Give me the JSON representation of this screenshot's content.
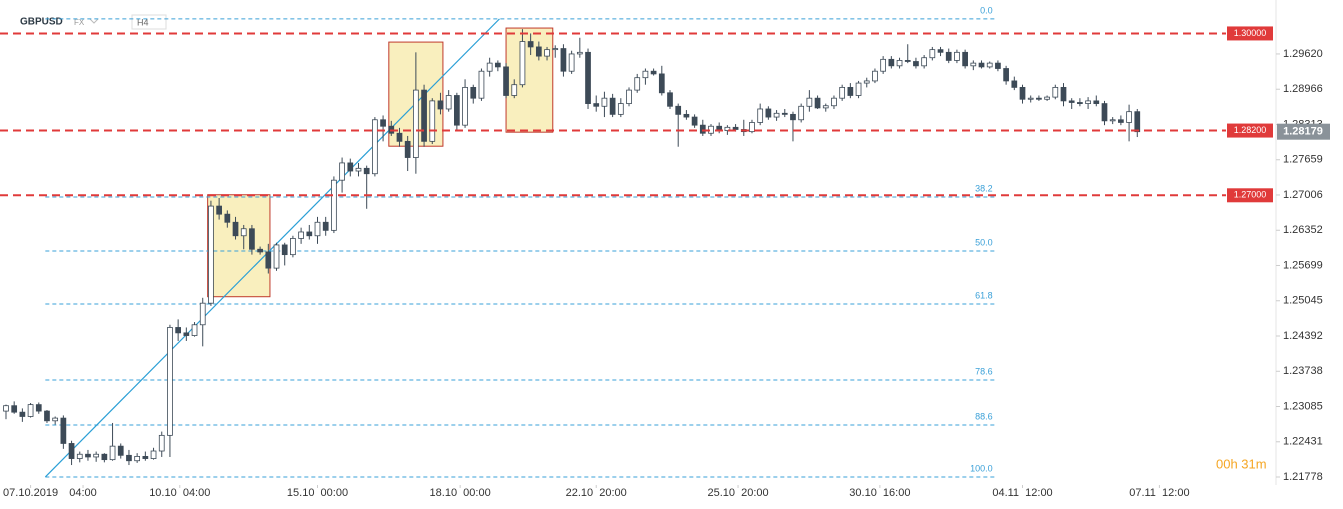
{
  "chart_data": {
    "type": "candlestick",
    "symbol": "GBPUSD",
    "market": "FX",
    "timeframe": "H4",
    "timer": "00h 31m",
    "ylim": [
      1.2163,
      1.3062
    ],
    "xlim": [
      -0.73,
      154.8
    ],
    "yticks": [
      {
        "value": 1.2962,
        "label": "1.29620"
      },
      {
        "value": 1.28966,
        "label": "1.28966"
      },
      {
        "value": 1.28313,
        "label": "1.28313"
      },
      {
        "value": 1.27659,
        "label": "1.27659"
      },
      {
        "value": 1.27006,
        "label": "1.27006"
      },
      {
        "value": 1.26352,
        "label": "1.26352"
      },
      {
        "value": 1.25699,
        "label": "1.25699"
      },
      {
        "value": 1.25045,
        "label": "1.25045"
      },
      {
        "value": 1.24392,
        "label": "1.24392"
      },
      {
        "value": 1.23738,
        "label": "1.23738"
      },
      {
        "value": 1.23085,
        "label": "1.23085"
      },
      {
        "value": 1.22431,
        "label": "1.22431"
      },
      {
        "value": 1.21778,
        "label": "1.21778"
      }
    ],
    "xticks": [
      {
        "value": 3,
        "label": "07.10.2019"
      },
      {
        "value": 9.4,
        "label": "04:00"
      },
      {
        "value": 21.2,
        "label": "10.10  04:00"
      },
      {
        "value": 38,
        "label": "15.10  00:00"
      },
      {
        "value": 55.4,
        "label": "18.10  00:00"
      },
      {
        "value": 72,
        "label": "22.10  20:00"
      },
      {
        "value": 89.3,
        "label": "25.10  20:00"
      },
      {
        "value": 106.6,
        "label": "30.10  16:00"
      },
      {
        "value": 124,
        "label": "04.11  12:00"
      },
      {
        "value": 140.7,
        "label": "07.11  12:00"
      }
    ],
    "levels": [
      {
        "value": 1.3,
        "label": "1.30000"
      },
      {
        "value": 1.282,
        "label": "1.28200"
      },
      {
        "value": 1.27,
        "label": "1.27000"
      }
    ],
    "level_color": "#e03a3a",
    "last_price": 1.28179,
    "fib": {
      "x": [
        4.8,
        120.6
      ],
      "color": "#3aa0d8",
      "levels": [
        {
          "value": 1.30269,
          "label": "0.0"
        },
        {
          "value": 1.26969,
          "label": "38.2"
        },
        {
          "value": 1.25968,
          "label": "50.0"
        },
        {
          "value": 1.24985,
          "label": "61.8"
        },
        {
          "value": 1.23576,
          "label": "78.6"
        },
        {
          "value": 1.22742,
          "label": "88.6"
        },
        {
          "value": 1.21778,
          "label": "100.0"
        }
      ]
    },
    "trendline": {
      "x": [
        4.8,
        60.2
      ],
      "y": [
        1.2178,
        1.3027
      ],
      "color": "#2a9fd6"
    },
    "zones": [
      {
        "x": [
          24.6,
          32.2
        ],
        "y": [
          1.2701,
          1.2512
        ]
      },
      {
        "x": [
          46.7,
          53.3
        ],
        "y": [
          1.2984,
          1.2791
        ]
      },
      {
        "x": [
          61,
          66.7
        ],
        "y": [
          1.301,
          1.2817
        ]
      }
    ],
    "up_color": "#ffffff",
    "down_color": "#3d4a57",
    "ohlc": [
      [
        1.23,
        1.2312,
        1.2285,
        1.231
      ],
      [
        1.231,
        1.2318,
        1.2295,
        1.2298
      ],
      [
        1.2298,
        1.2305,
        1.228,
        1.229
      ],
      [
        1.229,
        1.2315,
        1.2288,
        1.2312
      ],
      [
        1.2312,
        1.2316,
        1.2295,
        1.23
      ],
      [
        1.23,
        1.2302,
        1.2278,
        1.2282
      ],
      [
        1.2282,
        1.229,
        1.2275,
        1.2287
      ],
      [
        1.2287,
        1.2292,
        1.223,
        1.224
      ],
      [
        1.224,
        1.2245,
        1.22,
        1.2212
      ],
      [
        1.2212,
        1.2225,
        1.2205,
        1.222
      ],
      [
        1.222,
        1.2228,
        1.2208,
        1.2215
      ],
      [
        1.2215,
        1.2225,
        1.2206,
        1.222
      ],
      [
        1.222,
        1.2222,
        1.2205,
        1.221
      ],
      [
        1.221,
        1.2278,
        1.2208,
        1.2235
      ],
      [
        1.2235,
        1.224,
        1.2212,
        1.2218
      ],
      [
        1.2218,
        1.2228,
        1.22,
        1.2208
      ],
      [
        1.2208,
        1.2222,
        1.2204,
        1.2216
      ],
      [
        1.2216,
        1.2225,
        1.2208,
        1.2212
      ],
      [
        1.2212,
        1.2232,
        1.221,
        1.2226
      ],
      [
        1.2226,
        1.2262,
        1.2215,
        1.2255
      ],
      [
        1.2255,
        1.246,
        1.2215,
        1.2455
      ],
      [
        1.2455,
        1.247,
        1.243,
        1.2445
      ],
      [
        1.2445,
        1.2455,
        1.243,
        1.244
      ],
      [
        1.244,
        1.2465,
        1.2438,
        1.246
      ],
      [
        1.246,
        1.251,
        1.242,
        1.25
      ],
      [
        1.25,
        1.269,
        1.2495,
        1.268
      ],
      [
        1.268,
        1.2695,
        1.2655,
        1.2665
      ],
      [
        1.2665,
        1.2672,
        1.264,
        1.265
      ],
      [
        1.265,
        1.266,
        1.2618,
        1.2625
      ],
      [
        1.2625,
        1.2645,
        1.26,
        1.2638
      ],
      [
        1.2638,
        1.2645,
        1.259,
        1.26
      ],
      [
        1.26,
        1.2605,
        1.259,
        1.2595
      ],
      [
        1.2595,
        1.261,
        1.2555,
        1.2565
      ],
      [
        1.2565,
        1.2612,
        1.256,
        1.2608
      ],
      [
        1.2608,
        1.2612,
        1.257,
        1.259
      ],
      [
        1.259,
        1.2625,
        1.2585,
        1.262
      ],
      [
        1.262,
        1.264,
        1.261,
        1.2632
      ],
      [
        1.2632,
        1.2645,
        1.2618,
        1.2625
      ],
      [
        1.2625,
        1.266,
        1.261,
        1.265
      ],
      [
        1.265,
        1.266,
        1.2625,
        1.2635
      ],
      [
        1.2635,
        1.2735,
        1.263,
        1.2728
      ],
      [
        1.2728,
        1.277,
        1.2705,
        1.276
      ],
      [
        1.276,
        1.2768,
        1.2735,
        1.2745
      ],
      [
        1.2745,
        1.276,
        1.2735,
        1.275
      ],
      [
        1.275,
        1.2755,
        1.2675,
        1.274
      ],
      [
        1.274,
        1.2845,
        1.2735,
        1.284
      ],
      [
        1.284,
        1.2848,
        1.28,
        1.2828
      ],
      [
        1.2828,
        1.2838,
        1.281,
        1.2815
      ],
      [
        1.2815,
        1.2825,
        1.279,
        1.28
      ],
      [
        1.28,
        1.281,
        1.2745,
        1.277
      ],
      [
        1.277,
        1.2965,
        1.274,
        1.2895
      ],
      [
        1.2895,
        1.2905,
        1.279,
        1.28
      ],
      [
        1.28,
        1.288,
        1.2795,
        1.2875
      ],
      [
        1.2875,
        1.289,
        1.285,
        1.286
      ],
      [
        1.286,
        1.2895,
        1.2855,
        1.2885
      ],
      [
        1.2885,
        1.289,
        1.282,
        1.283
      ],
      [
        1.283,
        1.2915,
        1.2825,
        1.29
      ],
      [
        1.29,
        1.2905,
        1.287,
        1.288
      ],
      [
        1.288,
        1.2935,
        1.2875,
        1.293
      ],
      [
        1.293,
        1.2955,
        1.292,
        1.2945
      ],
      [
        1.2945,
        1.295,
        1.293,
        1.2938
      ],
      [
        1.2938,
        1.2945,
        1.288,
        1.2885
      ],
      [
        1.2885,
        1.2915,
        1.288,
        1.2905
      ],
      [
        1.2905,
        1.3008,
        1.29,
        1.2985
      ],
      [
        1.2985,
        1.3,
        1.296,
        1.2975
      ],
      [
        1.2975,
        1.2985,
        1.295,
        1.2958
      ],
      [
        1.2958,
        1.2975,
        1.295,
        1.297
      ],
      [
        1.297,
        1.2978,
        1.2955,
        1.2972
      ],
      [
        1.2972,
        1.298,
        1.292,
        1.293
      ],
      [
        1.293,
        1.2968,
        1.2925,
        1.2962
      ],
      [
        1.2962,
        1.2992,
        1.2955,
        1.2965
      ],
      [
        1.2965,
        1.2972,
        1.286,
        1.287
      ],
      [
        1.287,
        1.2885,
        1.2855,
        1.2865
      ],
      [
        1.2865,
        1.2892,
        1.2845,
        1.288
      ],
      [
        1.288,
        1.2888,
        1.2845,
        1.285
      ],
      [
        1.285,
        1.288,
        1.2845,
        1.287
      ],
      [
        1.287,
        1.29,
        1.2865,
        1.2895
      ],
      [
        1.2895,
        1.2925,
        1.289,
        1.2918
      ],
      [
        1.2918,
        1.2935,
        1.2905,
        1.293
      ],
      [
        1.293,
        1.2935,
        1.2922,
        1.2925
      ],
      [
        1.2925,
        1.294,
        1.2885,
        1.289
      ],
      [
        1.289,
        1.2895,
        1.286,
        1.2865
      ],
      [
        1.2865,
        1.287,
        1.279,
        1.285
      ],
      [
        1.285,
        1.2858,
        1.284,
        1.2845
      ],
      [
        1.2845,
        1.285,
        1.2825,
        1.283
      ],
      [
        1.283,
        1.284,
        1.281,
        1.2815
      ],
      [
        1.2815,
        1.2832,
        1.281,
        1.2828
      ],
      [
        1.2828,
        1.2835,
        1.2815,
        1.282
      ],
      [
        1.282,
        1.283,
        1.2812,
        1.2826
      ],
      [
        1.2826,
        1.2832,
        1.2818,
        1.2822
      ],
      [
        1.2822,
        1.284,
        1.281,
        1.2818
      ],
      [
        1.2818,
        1.284,
        1.2815,
        1.2835
      ],
      [
        1.2835,
        1.287,
        1.283,
        1.286
      ],
      [
        1.286,
        1.2865,
        1.284,
        1.2845
      ],
      [
        1.2845,
        1.2858,
        1.2838,
        1.2852
      ],
      [
        1.2852,
        1.286,
        1.2845,
        1.285
      ],
      [
        1.285,
        1.2855,
        1.28,
        1.284
      ],
      [
        1.284,
        1.287,
        1.2835,
        1.2865
      ],
      [
        1.2865,
        1.2895,
        1.2855,
        1.288
      ],
      [
        1.288,
        1.2885,
        1.286,
        1.2862
      ],
      [
        1.2862,
        1.287,
        1.2855,
        1.2866
      ],
      [
        1.2866,
        1.2885,
        1.286,
        1.288
      ],
      [
        1.288,
        1.2905,
        1.2875,
        1.29
      ],
      [
        1.29,
        1.2908,
        1.288,
        1.2885
      ],
      [
        1.2885,
        1.2912,
        1.288,
        1.2908
      ],
      [
        1.2908,
        1.2918,
        1.29,
        1.2912
      ],
      [
        1.2912,
        1.2935,
        1.2908,
        1.293
      ],
      [
        1.293,
        1.2958,
        1.2925,
        1.2952
      ],
      [
        1.2952,
        1.2958,
        1.2935,
        1.294
      ],
      [
        1.294,
        1.2955,
        1.2935,
        1.295
      ],
      [
        1.295,
        1.298,
        1.2945,
        1.2948
      ],
      [
        1.2948,
        1.2955,
        1.2935,
        1.294
      ],
      [
        1.294,
        1.296,
        1.2935,
        1.2955
      ],
      [
        1.2955,
        1.2975,
        1.295,
        1.297
      ],
      [
        1.297,
        1.2975,
        1.2958,
        1.2965
      ],
      [
        1.2965,
        1.2972,
        1.2945,
        1.295
      ],
      [
        1.295,
        1.297,
        1.2945,
        1.2965
      ],
      [
        1.2965,
        1.297,
        1.2935,
        1.294
      ],
      [
        1.294,
        1.295,
        1.2932,
        1.2945
      ],
      [
        1.2945,
        1.295,
        1.2935,
        1.2938
      ],
      [
        1.2938,
        1.2948,
        1.2935,
        1.2945
      ],
      [
        1.2945,
        1.295,
        1.293,
        1.2935
      ],
      [
        1.2935,
        1.294,
        1.2905,
        1.2912
      ],
      [
        1.2912,
        1.292,
        1.2895,
        1.29
      ],
      [
        1.29,
        1.2905,
        1.287,
        1.2878
      ],
      [
        1.2878,
        1.2885,
        1.2872,
        1.288
      ],
      [
        1.288,
        1.2885,
        1.2875,
        1.2878
      ],
      [
        1.2878,
        1.2885,
        1.2875,
        1.2882
      ],
      [
        1.2882,
        1.2905,
        1.2878,
        1.29
      ],
      [
        1.29,
        1.2908,
        1.2865,
        1.2875
      ],
      [
        1.2875,
        1.288,
        1.286,
        1.2872
      ],
      [
        1.2872,
        1.288,
        1.2865,
        1.287
      ],
      [
        1.287,
        1.2882,
        1.286,
        1.2875
      ],
      [
        1.2875,
        1.2885,
        1.2865,
        1.287
      ],
      [
        1.287,
        1.2875,
        1.283,
        1.2838
      ],
      [
        1.2838,
        1.2845,
        1.2832,
        1.284
      ],
      [
        1.284,
        1.2848,
        1.283,
        1.2835
      ],
      [
        1.2835,
        1.2868,
        1.28,
        1.2855
      ],
      [
        1.2855,
        1.286,
        1.2808,
        1.28179
      ]
    ]
  }
}
